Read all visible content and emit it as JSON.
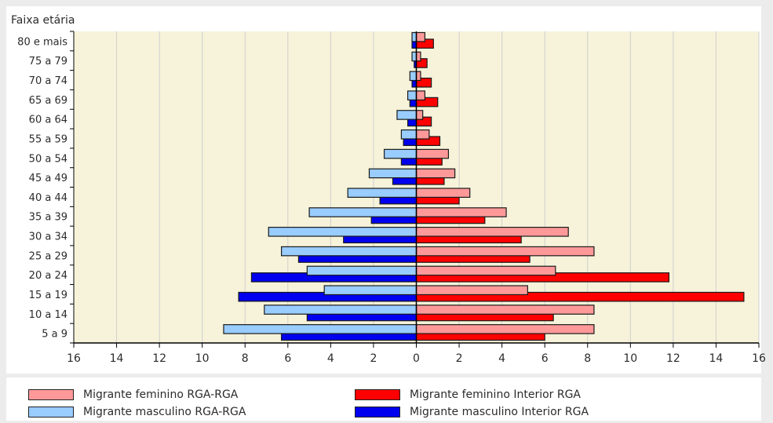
{
  "chart_data": {
    "type": "bar",
    "orientation": "horizontal",
    "ylabel": "Faixa etária",
    "categories": [
      "5 a 9",
      "10 a 14",
      "15 a 19",
      "20 a 24",
      "25 a 29",
      "30 a 34",
      "35 a 39",
      "40 a 44",
      "45 a 49",
      "50 a 54",
      "55 a 59",
      "60 a 64",
      "65 a 69",
      "70 a 74",
      "75 a 79",
      "80 e mais"
    ],
    "xlim": [
      -16,
      16
    ],
    "xticks": [
      -16,
      -14,
      -12,
      -10,
      -8,
      -6,
      -4,
      -2,
      0,
      2,
      4,
      6,
      8,
      10,
      12,
      14,
      16
    ],
    "xtick_labels": [
      "16",
      "14",
      "12",
      "10",
      "8",
      "6",
      "4",
      "2",
      "0",
      "2",
      "4",
      "6",
      "8",
      "10",
      "12",
      "14",
      "16"
    ],
    "grid": "vertical",
    "legend_position": "bottom",
    "series": [
      {
        "name": "Migrante feminino Interior RGA",
        "side": "right",
        "color": "#ff0000",
        "values": [
          6.0,
          6.4,
          15.3,
          11.8,
          5.3,
          4.9,
          3.2,
          2.0,
          1.3,
          1.2,
          1.1,
          0.7,
          1.0,
          0.7,
          0.5,
          0.8
        ]
      },
      {
        "name": "Migrante feminino RGA-RGA",
        "side": "right",
        "color": "#ff9999",
        "values": [
          8.3,
          8.3,
          5.2,
          6.5,
          8.3,
          7.1,
          4.2,
          2.5,
          1.8,
          1.5,
          0.6,
          0.3,
          0.4,
          0.2,
          0.2,
          0.4
        ]
      },
      {
        "name": "Migrante masculino Interior RGA",
        "side": "left",
        "color": "#0000ee",
        "values": [
          6.3,
          5.1,
          8.3,
          7.7,
          5.5,
          3.4,
          2.1,
          1.7,
          1.1,
          0.7,
          0.6,
          0.4,
          0.3,
          0.2,
          0.1,
          0.2
        ]
      },
      {
        "name": "Migrante masculino RGA-RGA",
        "side": "left",
        "color": "#99ccff",
        "values": [
          9.0,
          7.1,
          4.3,
          5.1,
          6.3,
          6.9,
          5.0,
          3.2,
          2.2,
          1.5,
          0.7,
          0.9,
          0.4,
          0.3,
          0.2,
          0.2
        ]
      }
    ]
  },
  "legend": [
    {
      "label": "Migrante feminino RGA-RGA",
      "color": "#ff9999"
    },
    {
      "label": "Migrante feminino Interior RGA",
      "color": "#ff0000"
    },
    {
      "label": "Migrante masculino RGA-RGA",
      "color": "#99ccff"
    },
    {
      "label": "Migrante masculino Interior RGA",
      "color": "#0000ee"
    }
  ]
}
